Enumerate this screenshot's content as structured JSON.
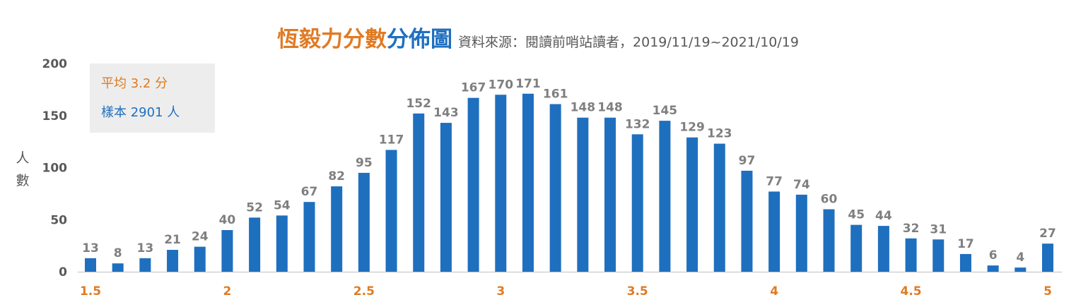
{
  "title": {
    "part1": "恆毅力分數",
    "part2": "分佈圖",
    "subtitle": "資料來源：閱讀前哨站讀者，2019/11/19~2021/10/19"
  },
  "info": {
    "average": "平均 3.2 分",
    "sample": "樣本 2901 人"
  },
  "colors": {
    "bar": "#1F6FBF",
    "title_orange": "#E07B24",
    "title_blue": "#1F6FBF",
    "tick_orange": "#E07B24",
    "label_gray": "#7F7F7F"
  },
  "chart_data": {
    "type": "bar",
    "title": "恆毅力分數分佈圖",
    "subtitle": "資料來源：閱讀前哨站讀者，2019/11/19~2021/10/19",
    "xlabel": "",
    "ylabel": "人數",
    "ylabel_chars": [
      "人",
      "數"
    ],
    "ylim": [
      0,
      200
    ],
    "yticks": [
      0,
      50,
      100,
      150,
      200
    ],
    "xlim": [
      1.5,
      5
    ],
    "xticks": [
      "1.5",
      "2",
      "2.5",
      "3",
      "3.5",
      "4",
      "4.5",
      "5"
    ],
    "grid": false,
    "legend": "none",
    "x": [
      1.5,
      1.6,
      1.7,
      1.8,
      1.9,
      2.0,
      2.1,
      2.2,
      2.3,
      2.4,
      2.5,
      2.6,
      2.7,
      2.8,
      2.9,
      3.0,
      3.1,
      3.2,
      3.3,
      3.4,
      3.5,
      3.6,
      3.7,
      3.8,
      3.9,
      4.0,
      4.1,
      4.2,
      4.3,
      4.4,
      4.5,
      4.6,
      4.7,
      4.8,
      4.9,
      5.0
    ],
    "values": [
      13,
      8,
      13,
      21,
      24,
      40,
      52,
      54,
      67,
      82,
      95,
      117,
      152,
      143,
      167,
      170,
      171,
      161,
      148,
      148,
      132,
      145,
      129,
      123,
      97,
      77,
      74,
      60,
      45,
      44,
      32,
      31,
      17,
      6,
      4,
      27
    ]
  }
}
